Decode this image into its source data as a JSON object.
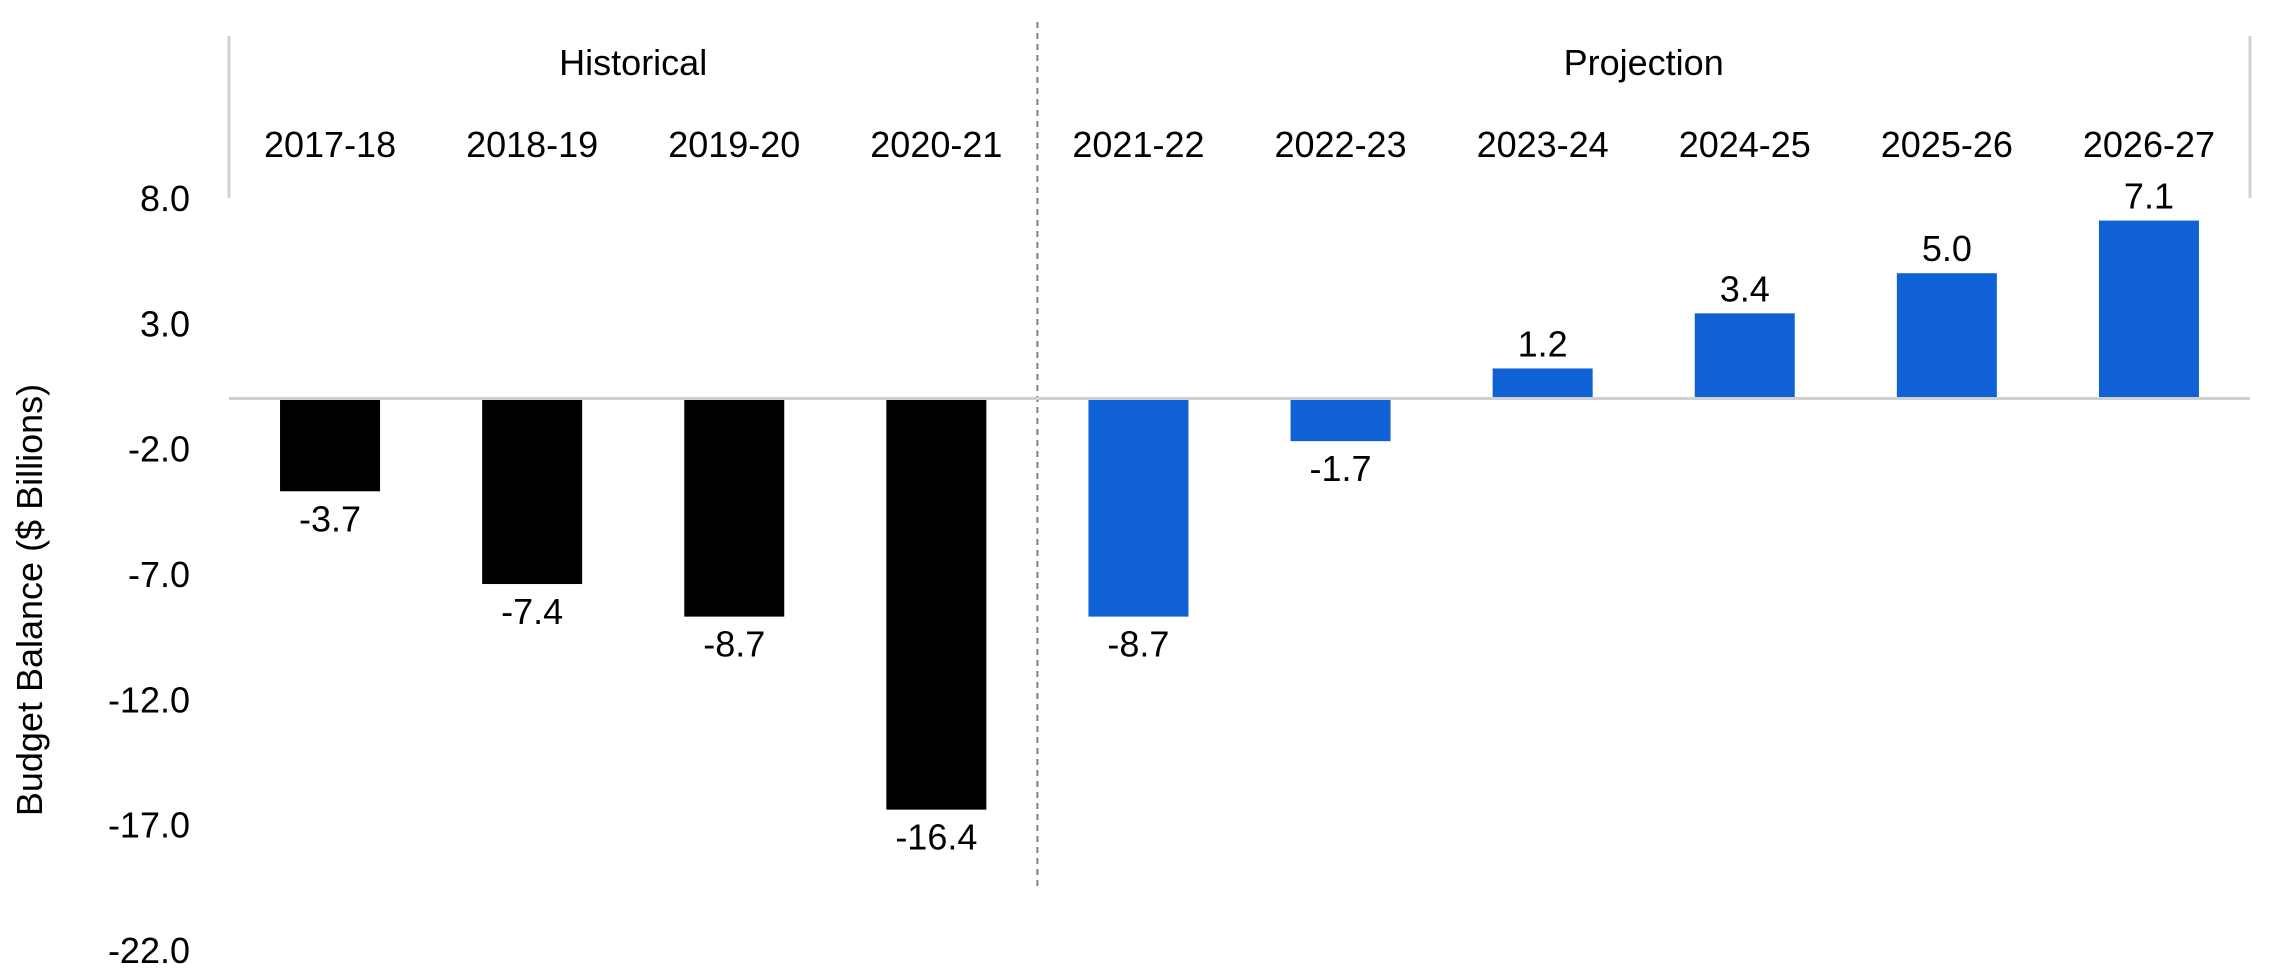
{
  "chart_data": {
    "type": "bar",
    "ylabel": "Budget Balance ($ Billions)",
    "xlabel": "",
    "ylim": [
      -22.0,
      8.0
    ],
    "yticks": [
      "8.0",
      "3.0",
      "-2.0",
      "-7.0",
      "-12.0",
      "-17.0",
      "-22.0"
    ],
    "ytick_values": [
      8,
      3,
      -2,
      -7,
      -12,
      -17,
      -22
    ],
    "categories": [
      "2017-18",
      "2018-19",
      "2019-20",
      "2020-21",
      "2021-22",
      "2022-23",
      "2023-24",
      "2024-25",
      "2025-26",
      "2026-27"
    ],
    "values": [
      -3.7,
      -7.4,
      -8.7,
      -16.4,
      -8.7,
      -1.7,
      1.2,
      3.4,
      5.0,
      7.1
    ],
    "value_labels": [
      "-3.7",
      "-7.4",
      "-8.7",
      "-16.4",
      "-8.7",
      "-1.7",
      "1.2",
      "3.4",
      "5.0",
      "7.1"
    ],
    "sections": [
      {
        "label": "Historical",
        "start": 0,
        "end": 3,
        "color": "#000000"
      },
      {
        "label": "Projection",
        "start": 4,
        "end": 9,
        "color": "#1060D6"
      }
    ],
    "grid": false,
    "legend": "none"
  }
}
